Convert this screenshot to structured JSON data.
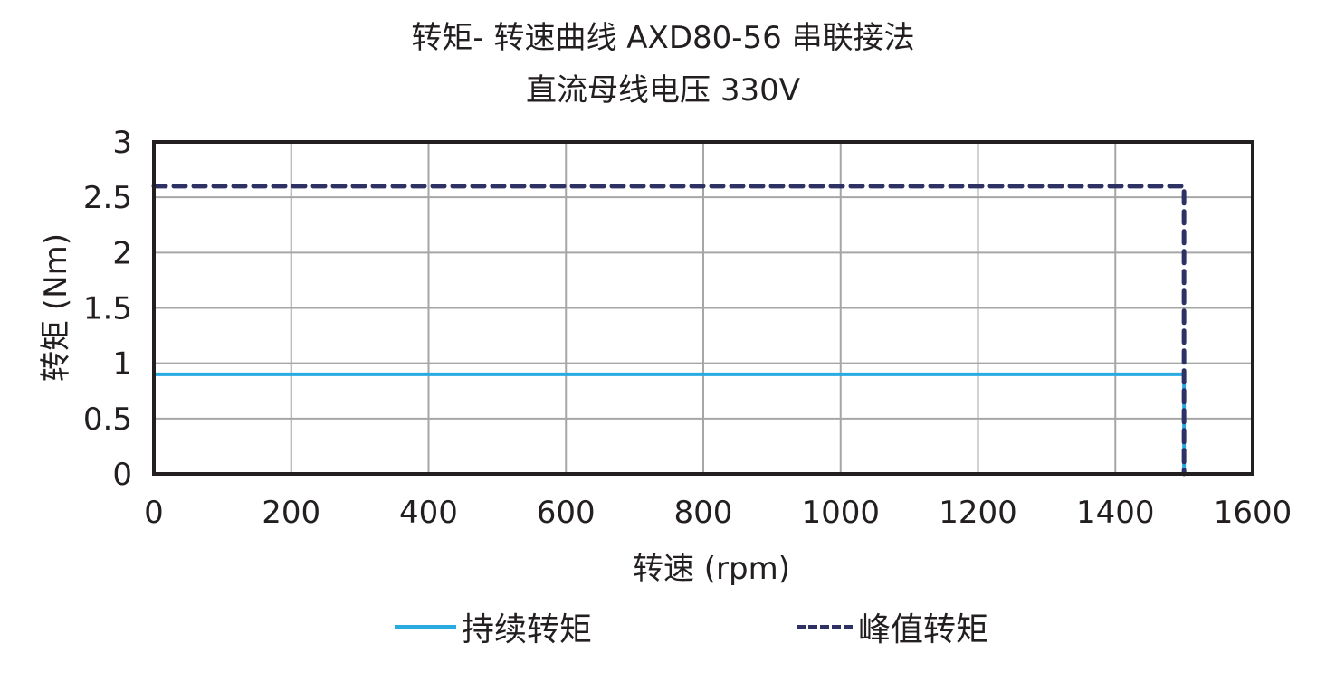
{
  "title": {
    "line1": "转矩- 转速曲线 AXD80-56 串联接法",
    "line2": "直流母线电压 330V"
  },
  "axes": {
    "xlabel": "转速 (rpm)",
    "ylabel": "转矩 (Nm)",
    "xticks": [
      "0",
      "200",
      "400",
      "600",
      "800",
      "1000",
      "1200",
      "1400",
      "1600"
    ],
    "yticks": [
      "0",
      "0.5",
      "1",
      "1.5",
      "2",
      "2.5",
      "3"
    ]
  },
  "legend": {
    "continuous": "持续转矩",
    "peak": "峰值转矩"
  },
  "colors": {
    "continuous": "#29abe2",
    "peak": "#2e3163",
    "grid": "#a6a6a6",
    "frame": "#231f20"
  },
  "chart_data": {
    "type": "line",
    "title": "转矩- 转速曲线 AXD80-56 串联接法 / 直流母线电压 330V",
    "xlabel": "转速 (rpm)",
    "ylabel": "转矩 (Nm)",
    "xlim": [
      0,
      1600
    ],
    "ylim": [
      0,
      3
    ],
    "xticks": [
      0,
      200,
      400,
      600,
      800,
      1000,
      1200,
      1400,
      1600
    ],
    "yticks": [
      0,
      0.5,
      1,
      1.5,
      2,
      2.5,
      3
    ],
    "grid": true,
    "legend_position": "bottom",
    "series": [
      {
        "name": "持续转矩",
        "style": "solid",
        "color": "#29abe2",
        "x": [
          0,
          1500,
          1500
        ],
        "y": [
          0.9,
          0.9,
          0
        ]
      },
      {
        "name": "峰值转矩",
        "style": "dashed",
        "color": "#2e3163",
        "x": [
          0,
          1500,
          1500
        ],
        "y": [
          2.6,
          2.6,
          0
        ]
      }
    ]
  }
}
